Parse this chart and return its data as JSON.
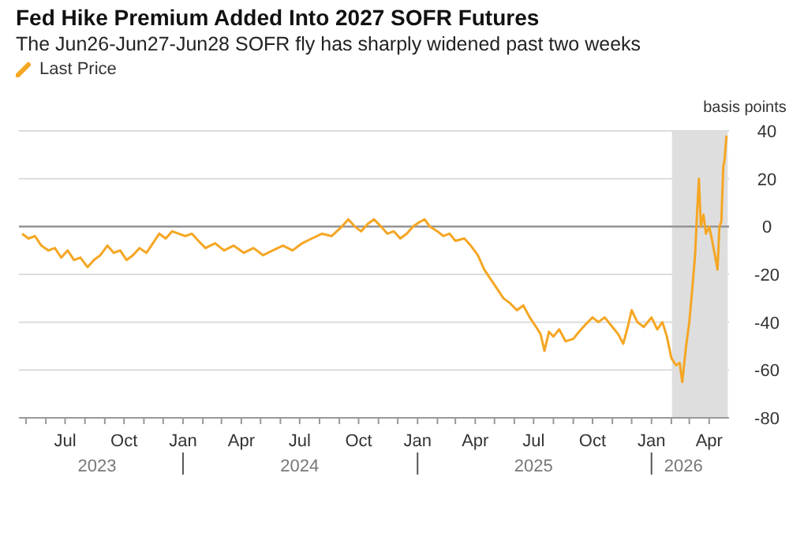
{
  "chart_data": {
    "type": "line",
    "title": "Fed Hike Premium Added Into 2027 SOFR Futures",
    "subtitle": "The Jun26-Jun27-Jun28 SOFR fly has sharply widened past two weeks",
    "ylabel": "basis points",
    "x": [
      "2023-04-25",
      "2023-05-05",
      "2023-05-15",
      "2023-05-25",
      "2023-06-05",
      "2023-06-15",
      "2023-06-25",
      "2023-07-05",
      "2023-07-15",
      "2023-07-25",
      "2023-08-05",
      "2023-08-15",
      "2023-08-25",
      "2023-09-05",
      "2023-09-15",
      "2023-09-25",
      "2023-10-05",
      "2023-10-15",
      "2023-10-25",
      "2023-11-05",
      "2023-11-15",
      "2023-11-25",
      "2023-12-05",
      "2023-12-15",
      "2023-12-25",
      "2024-01-05",
      "2024-01-15",
      "2024-01-25",
      "2024-02-05",
      "2024-02-20",
      "2024-03-05",
      "2024-03-20",
      "2024-04-05",
      "2024-04-20",
      "2024-05-05",
      "2024-05-20",
      "2024-06-05",
      "2024-06-20",
      "2024-07-05",
      "2024-07-20",
      "2024-08-05",
      "2024-08-20",
      "2024-09-05",
      "2024-09-15",
      "2024-09-25",
      "2024-10-05",
      "2024-10-15",
      "2024-10-25",
      "2024-11-05",
      "2024-11-15",
      "2024-11-25",
      "2024-12-05",
      "2024-12-15",
      "2024-12-25",
      "2025-01-05",
      "2025-01-12",
      "2025-01-20",
      "2025-02-01",
      "2025-02-10",
      "2025-02-20",
      "2025-03-01",
      "2025-03-15",
      "2025-03-25",
      "2025-04-05",
      "2025-04-15",
      "2025-04-25",
      "2025-05-05",
      "2025-05-15",
      "2025-05-25",
      "2025-06-05",
      "2025-06-15",
      "2025-06-25",
      "2025-07-05",
      "2025-07-12",
      "2025-07-18",
      "2025-07-25",
      "2025-08-01",
      "2025-08-10",
      "2025-08-20",
      "2025-09-01",
      "2025-09-10",
      "2025-09-20",
      "2025-10-01",
      "2025-10-10",
      "2025-10-20",
      "2025-11-01",
      "2025-11-10",
      "2025-11-18",
      "2025-11-25",
      "2025-12-01",
      "2025-12-10",
      "2025-12-20",
      "2026-01-01",
      "2026-01-10",
      "2026-01-18",
      "2026-01-25",
      "2026-02-01",
      "2026-02-08",
      "2026-02-14",
      "2026-02-18",
      "2026-02-24",
      "2026-03-01",
      "2026-03-06",
      "2026-03-10",
      "2026-03-13",
      "2026-03-16",
      "2026-03-19",
      "2026-03-23",
      "2026-03-27",
      "2026-04-01",
      "2026-04-05",
      "2026-04-10",
      "2026-04-14",
      "2026-04-17",
      "2026-04-20",
      "2026-04-23",
      "2026-04-25",
      "2026-04-28"
    ],
    "series": [
      {
        "name": "Last Price",
        "color": "#f5a623",
        "values": [
          -3,
          -5,
          -4,
          -8,
          -10,
          -9,
          -13,
          -10,
          -14,
          -13,
          -17,
          -14,
          -12,
          -8,
          -11,
          -10,
          -14,
          -12,
          -9,
          -11,
          -7,
          -3,
          -5,
          -2,
          -3,
          -4,
          -3,
          -6,
          -9,
          -7,
          -10,
          -8,
          -11,
          -9,
          -12,
          -10,
          -8,
          -10,
          -7,
          -5,
          -3,
          -4,
          0,
          3,
          0,
          -2,
          1,
          3,
          0,
          -3,
          -2,
          -5,
          -3,
          0,
          2,
          3,
          0,
          -2,
          -4,
          -3,
          -6,
          -5,
          -8,
          -12,
          -18,
          -22,
          -26,
          -30,
          -32,
          -35,
          -33,
          -38,
          -42,
          -45,
          -52,
          -44,
          -46,
          -43,
          -48,
          -47,
          -44,
          -41,
          -38,
          -40,
          -38,
          -42,
          -45,
          -49,
          -42,
          -35,
          -40,
          -42,
          -38,
          -43,
          -40,
          -46,
          -55,
          -58,
          -57,
          -65,
          -50,
          -40,
          -25,
          -12,
          5,
          20,
          0,
          5,
          -3,
          0,
          -5,
          -12,
          -18,
          0,
          2,
          25,
          28,
          38
        ]
      }
    ],
    "xlim": [
      "2023-04-20",
      "2026-05-02"
    ],
    "xticks": [
      {
        "value": "2023-05-01",
        "label": null
      },
      {
        "value": "2023-06-01",
        "label": null
      },
      {
        "value": "2023-07-01",
        "label": "Jul"
      },
      {
        "value": "2023-08-01",
        "label": null
      },
      {
        "value": "2023-09-01",
        "label": null
      },
      {
        "value": "2023-10-01",
        "label": "Oct"
      },
      {
        "value": "2023-11-01",
        "label": null
      },
      {
        "value": "2023-12-01",
        "label": null
      },
      {
        "value": "2024-01-01",
        "label": "Jan"
      },
      {
        "value": "2024-02-01",
        "label": null
      },
      {
        "value": "2024-03-01",
        "label": null
      },
      {
        "value": "2024-04-01",
        "label": "Apr"
      },
      {
        "value": "2024-05-01",
        "label": null
      },
      {
        "value": "2024-06-01",
        "label": null
      },
      {
        "value": "2024-07-01",
        "label": "Jul"
      },
      {
        "value": "2024-08-01",
        "label": null
      },
      {
        "value": "2024-09-01",
        "label": null
      },
      {
        "value": "2024-10-01",
        "label": "Oct"
      },
      {
        "value": "2024-11-01",
        "label": null
      },
      {
        "value": "2024-12-01",
        "label": null
      },
      {
        "value": "2025-01-01",
        "label": "Jan"
      },
      {
        "value": "2025-02-01",
        "label": null
      },
      {
        "value": "2025-03-01",
        "label": null
      },
      {
        "value": "2025-04-01",
        "label": "Apr"
      },
      {
        "value": "2025-05-01",
        "label": null
      },
      {
        "value": "2025-06-01",
        "label": null
      },
      {
        "value": "2025-07-01",
        "label": "Jul"
      },
      {
        "value": "2025-08-01",
        "label": null
      },
      {
        "value": "2025-09-01",
        "label": null
      },
      {
        "value": "2025-10-01",
        "label": "Oct"
      },
      {
        "value": "2025-11-01",
        "label": null
      },
      {
        "value": "2025-12-01",
        "label": null
      },
      {
        "value": "2026-01-01",
        "label": "Jan"
      },
      {
        "value": "2026-02-01",
        "label": null
      },
      {
        "value": "2026-03-01",
        "label": null
      },
      {
        "value": "2026-04-01",
        "label": "Apr"
      }
    ],
    "x2ticks": [
      {
        "value": "2023-08-20",
        "label": "2023"
      },
      {
        "value": "2024-01-01",
        "label": null
      },
      {
        "value": "2024-07-01",
        "label": "2024"
      },
      {
        "value": "2025-01-01",
        "label": null
      },
      {
        "value": "2025-07-01",
        "label": "2025"
      },
      {
        "value": "2026-01-01",
        "label": null
      },
      {
        "value": "2026-02-20",
        "label": "2026"
      }
    ],
    "x2lim": [
      "2023-04-20",
      "2026-05-02"
    ],
    "ylim": [
      -80,
      40
    ],
    "yticks": [
      -80,
      -60,
      -40,
      -20,
      0,
      20,
      40
    ],
    "grid": "y",
    "legend": "top left",
    "marker": "none",
    "line_style": "solid",
    "ref_lines": [
      {
        "axis": "y",
        "value": 0,
        "color": "#8c8c8c"
      }
    ],
    "bands": [
      {
        "axis": "x",
        "from": "2026-02-02",
        "to": "2026-04-30",
        "color": "#dedede"
      }
    ]
  }
}
